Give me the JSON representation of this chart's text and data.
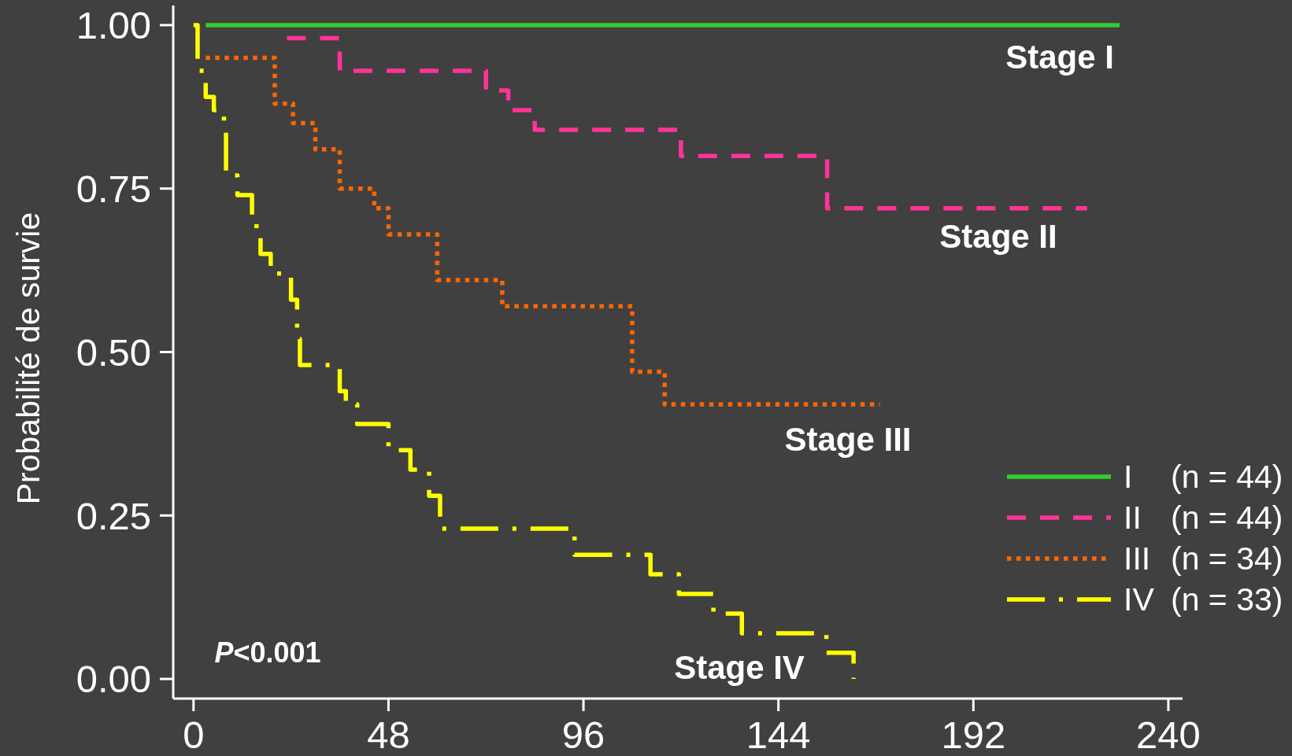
{
  "chart_data": {
    "type": "step",
    "ylabel": "Probabilité de survie",
    "xlim": [
      -5,
      243.5
    ],
    "ylim": [
      -0.03,
      1.03
    ],
    "xticks": [
      0,
      48,
      96,
      144,
      192,
      240
    ],
    "yticks": [
      {
        "value": 0,
        "label": "0.00"
      },
      0.25,
      {
        "value": 0.5,
        "label": "0.50"
      },
      0.75,
      {
        "value": 1,
        "label": "1.00"
      }
    ],
    "series": [
      {
        "name": "I (n = 44)",
        "color": "#32cd32",
        "line_style": "solid",
        "x": [
          3,
          228
        ],
        "values": [
          1,
          1
        ]
      },
      {
        "name": "II (n = 44)",
        "color": "#ff3399",
        "line_style": "dashed",
        "x": [
          23,
          36,
          72,
          77.5,
          84,
          120,
          156,
          220
        ],
        "values": [
          0.98,
          0.93,
          0.9,
          0.87,
          0.84,
          0.8,
          0.72,
          0.72
        ]
      },
      {
        "name": "III (n = 34)",
        "color": "#ff6600",
        "line_style": "dotted",
        "x": [
          3,
          20,
          24.5,
          30,
          36,
          44.5,
          48,
          60,
          76,
          108,
          116,
          169
        ],
        "values": [
          0.95,
          0.88,
          0.85,
          0.81,
          0.75,
          0.72,
          0.68,
          0.61,
          0.57,
          0.47,
          0.42,
          0.42
        ]
      },
      {
        "name": "IV (n = 33)",
        "color": "#ffff00",
        "line_style": "dashdot",
        "x": [
          0,
          1,
          3,
          5,
          7.5,
          8,
          10.8,
          14.4,
          15.5,
          16.5,
          19,
          24,
          25.5,
          26.2,
          36,
          37.5,
          40.3,
          48,
          53.4,
          58,
          60.7,
          93.8,
          112.5,
          119.5,
          128,
          135,
          155.8,
          162.5
        ],
        "values": [
          1.0,
          0.93,
          0.89,
          0.87,
          0.85,
          0.77,
          0.74,
          0.7,
          0.68,
          0.65,
          0.62,
          0.58,
          0.52,
          0.48,
          0.44,
          0.42,
          0.39,
          0.35,
          0.32,
          0.28,
          0.23,
          0.19,
          0.16,
          0.13,
          0.1,
          0.07,
          0.04,
          0.0
        ]
      }
    ],
    "annotations": [
      "Stage I",
      "Stage II",
      "Stage III",
      "Stage IV",
      "P<0.001"
    ],
    "legend": "bottom right",
    "marker": "none"
  }
}
